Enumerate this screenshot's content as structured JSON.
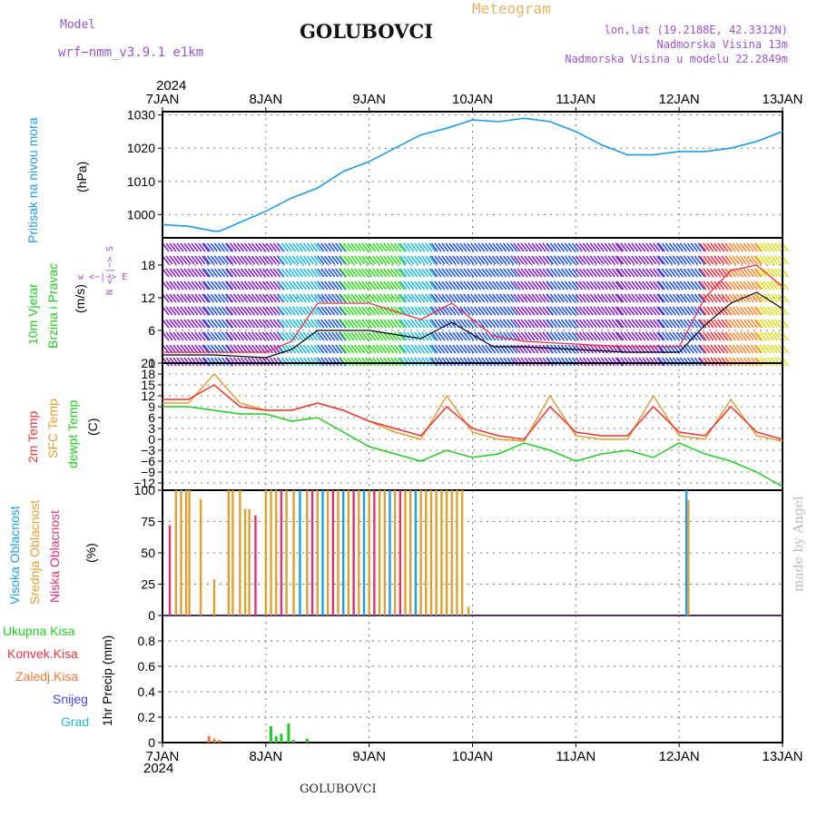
{
  "header": {
    "title": "GOLUBOVCI",
    "model_label": "Model",
    "model_name": "wrf−nmm_v3.9.1  e1km",
    "meteogram": "Meteogram",
    "lonlat": "lon,lat (19.2188E, 42.3312N)",
    "altitude": "Nadmorska Visina 13m",
    "model_altitude": "Nadmorska Visina u modelu 22.2849m",
    "footer_title": "GOLUBOVCI",
    "credit": "made by Angel",
    "year": "2024"
  },
  "colors": {
    "pressure": "#1e9be8",
    "temp": "#ee3333",
    "sfc_temp": "#e0a030",
    "dewpt": "#22cc22",
    "high_cloud": "#1ea0e8",
    "mid_cloud": "#e0a030",
    "low_cloud": "#e0307a",
    "wind_purple": "#8822cc",
    "wind_blue": "#2255ee",
    "wind_cyan": "#22bbdd",
    "wind_green": "#33dd22",
    "wind_red": "#ee3344"
  },
  "chart_data": [
    {
      "type": "line",
      "panel": "pressure",
      "ylabel": "Pritisak na nivou mora",
      "unit": "(hPa)",
      "x_ticks": [
        "7JAN",
        "8JAN",
        "9JAN",
        "10JAN",
        "11JAN",
        "12JAN",
        "13JAN"
      ],
      "yticks": [
        1000,
        1010,
        1020,
        1030
      ],
      "ylim": [
        993,
        1031
      ],
      "series": [
        {
          "x": [
            0,
            0.25,
            0.5,
            0.55,
            0.7,
            1.0,
            1.25,
            1.5,
            1.75,
            2.0,
            2.25,
            2.5,
            2.75,
            3.0,
            3.25,
            3.5,
            3.75,
            4.0,
            4.25,
            4.5,
            4.75,
            5.0,
            5.1,
            5.25,
            5.5,
            5.75,
            6.0
          ],
          "values": [
            997,
            996.5,
            995,
            995,
            997,
            1001,
            1005,
            1008,
            1013,
            1016,
            1020,
            1024,
            1026,
            1028.5,
            1028,
            1029,
            1028,
            1025,
            1021,
            1018,
            1018,
            1019,
            1019,
            1019,
            1020,
            1022,
            1025
          ]
        }
      ]
    },
    {
      "type": "line",
      "panel": "wind",
      "ylabel": "10m Vjetar Brzina i Pravac",
      "unit": "(m/s)",
      "compass": "w <−|−> E",
      "compass_ns": "N <−|−> S",
      "yticks": [
        0,
        6,
        12,
        18
      ],
      "ylim": [
        0,
        23
      ],
      "series": [
        {
          "name": "wind",
          "x": [
            0,
            0.5,
            1.0,
            1.25,
            1.5,
            2.0,
            2.5,
            2.8,
            3.2,
            3.5,
            4.0,
            4.5,
            5.0,
            5.25,
            5.5,
            5.75,
            6.0
          ],
          "values": [
            1.5,
            1.5,
            1,
            2.5,
            6,
            6,
            4.5,
            7.5,
            3,
            3,
            2.5,
            2,
            2,
            7,
            11,
            13,
            10
          ]
        },
        {
          "name": "gust",
          "x": [
            0,
            0.5,
            1.0,
            1.25,
            1.5,
            2.0,
            2.5,
            2.8,
            3.2,
            3.5,
            4.0,
            4.5,
            5.0,
            5.25,
            5.5,
            5.75,
            6.0
          ],
          "values": [
            2,
            2,
            2,
            4,
            11,
            11,
            8,
            11,
            5,
            4,
            3.5,
            3,
            3,
            12,
            17,
            18,
            14
          ]
        }
      ]
    },
    {
      "type": "line",
      "panel": "temperature",
      "labels": [
        "2m Temp",
        "SFC Temp",
        "dewpt Temp"
      ],
      "unit": "(C)",
      "yticks": [
        -12,
        -9,
        -6,
        -3,
        0,
        3,
        6,
        9,
        12,
        15,
        18,
        21
      ],
      "ylim": [
        -14,
        21
      ],
      "series": [
        {
          "name": "2m Temp",
          "x": [
            0,
            0.25,
            0.5,
            0.75,
            1.0,
            1.25,
            1.5,
            1.75,
            2.0,
            2.25,
            2.5,
            2.75,
            3.0,
            3.25,
            3.5,
            3.75,
            4.0,
            4.25,
            4.5,
            4.75,
            5.0,
            5.25,
            5.5,
            5.75,
            6.0
          ],
          "values": [
            11,
            11,
            15,
            9,
            8,
            8,
            10,
            8,
            5,
            3,
            1,
            9,
            3,
            1,
            0,
            9,
            2,
            1,
            1,
            9,
            2,
            1,
            9,
            2,
            0
          ]
        },
        {
          "name": "SFC Temp",
          "x": [
            0,
            0.25,
            0.5,
            0.75,
            1.0,
            1.25,
            1.5,
            1.75,
            2.0,
            2.25,
            2.5,
            2.75,
            3.0,
            3.25,
            3.5,
            3.75,
            4.0,
            4.25,
            4.5,
            4.75,
            5.0,
            5.25,
            5.5,
            5.75,
            6.0
          ],
          "values": [
            10,
            10,
            18,
            10,
            8,
            8,
            10,
            8,
            5,
            2,
            0,
            12,
            2,
            0,
            -0.5,
            12,
            1,
            0,
            0,
            12,
            1,
            0,
            11,
            1,
            -0.5
          ]
        },
        {
          "name": "dewpt Temp",
          "x": [
            0,
            0.25,
            0.5,
            0.75,
            1.0,
            1.25,
            1.5,
            1.75,
            2.0,
            2.25,
            2.5,
            2.75,
            3.0,
            3.25,
            3.5,
            3.75,
            4.0,
            4.25,
            4.5,
            4.75,
            5.0,
            5.25,
            5.5,
            5.75,
            6.0
          ],
          "values": [
            9,
            9,
            8,
            7,
            7,
            5,
            6,
            2,
            -2,
            -4,
            -6,
            -3,
            -5,
            -4,
            -1,
            -3,
            -6,
            -4,
            -3,
            -5,
            -1,
            -4,
            -6,
            -9,
            -13
          ]
        }
      ]
    },
    {
      "type": "bar",
      "panel": "cloud",
      "labels": [
        "Visoka Oblacnost",
        "Srednja Oblacnost",
        "Niska Oblacnost"
      ],
      "unit": "(%)",
      "yticks": [
        0,
        25,
        50,
        75,
        100
      ],
      "ylim": [
        0,
        100
      ],
      "bars": [
        {
          "x": 0.07,
          "layer": "low",
          "value": 72
        },
        {
          "x": 0.13,
          "layer": "mid",
          "value": 100
        },
        {
          "x": 0.18,
          "layer": "mid",
          "value": 100
        },
        {
          "x": 0.23,
          "layer": "mid",
          "value": 100
        },
        {
          "x": 0.26,
          "layer": "mid",
          "value": 100
        },
        {
          "x": 0.37,
          "layer": "mid",
          "value": 93
        },
        {
          "x": 0.5,
          "layer": "mid",
          "value": 29
        },
        {
          "x": 0.64,
          "layer": "mid",
          "value": 100
        },
        {
          "x": 0.68,
          "layer": "mid",
          "value": 100
        },
        {
          "x": 0.75,
          "layer": "mid",
          "value": 100
        },
        {
          "x": 0.8,
          "layer": "mid",
          "value": 85
        },
        {
          "x": 0.84,
          "layer": "mid",
          "value": 85
        },
        {
          "x": 0.9,
          "layer": "low",
          "value": 80
        },
        {
          "x": 1.0,
          "layer": "mid",
          "value": 100
        },
        {
          "x": 1.05,
          "layer": "mid",
          "value": 100
        },
        {
          "x": 1.1,
          "layer": "mid",
          "value": 100
        },
        {
          "x": 1.15,
          "layer": "low",
          "value": 100
        },
        {
          "x": 1.2,
          "layer": "mid",
          "value": 100
        },
        {
          "x": 1.27,
          "layer": "mid",
          "value": 100
        },
        {
          "x": 1.33,
          "layer": "high",
          "value": 100
        },
        {
          "x": 1.4,
          "layer": "mid",
          "value": 100
        },
        {
          "x": 1.45,
          "layer": "low",
          "value": 100
        },
        {
          "x": 1.5,
          "layer": "mid",
          "value": 100
        },
        {
          "x": 1.55,
          "layer": "high",
          "value": 100
        },
        {
          "x": 1.6,
          "layer": "mid",
          "value": 100
        },
        {
          "x": 1.65,
          "layer": "low",
          "value": 100
        },
        {
          "x": 1.7,
          "layer": "mid",
          "value": 100
        },
        {
          "x": 1.75,
          "layer": "high",
          "value": 100
        },
        {
          "x": 1.8,
          "layer": "mid",
          "value": 100
        },
        {
          "x": 1.85,
          "layer": "low",
          "value": 100
        },
        {
          "x": 1.9,
          "layer": "mid",
          "value": 100
        },
        {
          "x": 1.95,
          "layer": "high",
          "value": 100
        },
        {
          "x": 2.0,
          "layer": "mid",
          "value": 100
        },
        {
          "x": 2.05,
          "layer": "low",
          "value": 100
        },
        {
          "x": 2.1,
          "layer": "mid",
          "value": 100
        },
        {
          "x": 2.15,
          "layer": "mid",
          "value": 100
        },
        {
          "x": 2.2,
          "layer": "high",
          "value": 100
        },
        {
          "x": 2.25,
          "layer": "mid",
          "value": 100
        },
        {
          "x": 2.3,
          "layer": "low",
          "value": 100
        },
        {
          "x": 2.35,
          "layer": "mid",
          "value": 100
        },
        {
          "x": 2.4,
          "layer": "mid",
          "value": 100
        },
        {
          "x": 2.45,
          "layer": "high",
          "value": 100
        },
        {
          "x": 2.5,
          "layer": "mid",
          "value": 100
        },
        {
          "x": 2.55,
          "layer": "mid",
          "value": 100
        },
        {
          "x": 2.6,
          "layer": "mid",
          "value": 100
        },
        {
          "x": 2.65,
          "layer": "mid",
          "value": 100
        },
        {
          "x": 2.7,
          "layer": "mid",
          "value": 100
        },
        {
          "x": 2.75,
          "layer": "mid",
          "value": 100
        },
        {
          "x": 2.8,
          "layer": "mid",
          "value": 100
        },
        {
          "x": 2.85,
          "layer": "mid",
          "value": 100
        },
        {
          "x": 2.9,
          "layer": "mid",
          "value": 100
        },
        {
          "x": 2.96,
          "layer": "mid",
          "value": 7
        },
        {
          "x": 5.07,
          "layer": "high",
          "value": 100
        },
        {
          "x": 5.09,
          "layer": "mid",
          "value": 92
        }
      ]
    },
    {
      "type": "bar",
      "panel": "precipitation",
      "labels": [
        "Ukupna Kisa",
        "Konvek.Kisa",
        "Zaledj.Kisa",
        "Snijeg",
        "Grad"
      ],
      "unit": "1hr Precip (mm)",
      "yticks": [
        0,
        0.2,
        0.4,
        0.6,
        0.8
      ],
      "ylim": [
        0,
        1.0
      ],
      "bars": [
        {
          "x": 0.45,
          "series": "Zaledj.Kisa",
          "value": 0.05
        },
        {
          "x": 0.5,
          "series": "Zaledj.Kisa",
          "value": 0.03
        },
        {
          "x": 0.55,
          "series": "Zaledj.Kisa",
          "value": 0.02
        },
        {
          "x": 1.05,
          "series": "Ukupna Kisa",
          "value": 0.13
        },
        {
          "x": 1.1,
          "series": "Ukupna Kisa",
          "value": 0.05
        },
        {
          "x": 1.15,
          "series": "Ukupna Kisa",
          "value": 0.07
        },
        {
          "x": 1.22,
          "series": "Ukupna Kisa",
          "value": 0.15
        },
        {
          "x": 1.27,
          "series": "Ukupna Kisa",
          "value": 0.02
        },
        {
          "x": 1.4,
          "series": "Ukupna Kisa",
          "value": 0.03
        }
      ]
    }
  ]
}
